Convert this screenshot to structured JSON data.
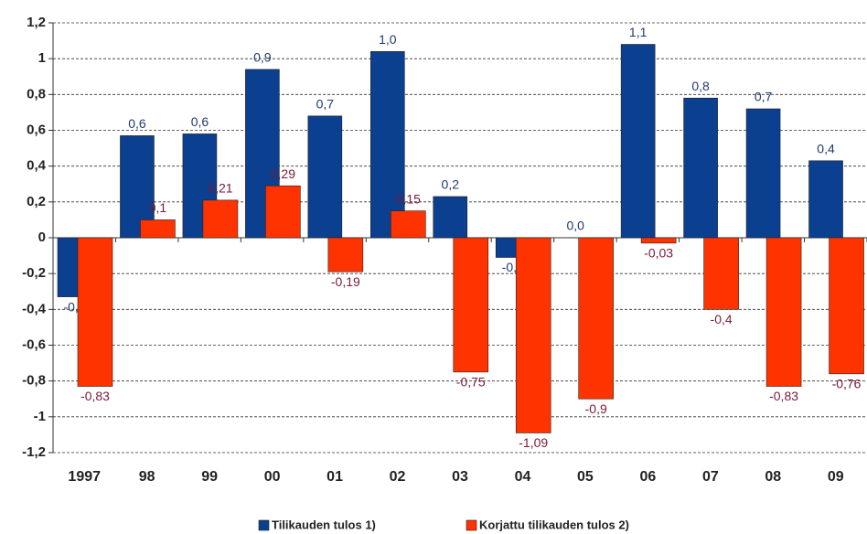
{
  "chart_data": {
    "type": "bar",
    "categories": [
      "1997",
      "98",
      "99",
      "00",
      "01",
      "02",
      "03",
      "04",
      "05",
      "06",
      "07",
      "08",
      "09"
    ],
    "series": [
      {
        "name": "Tilikauden tulos 1)",
        "color": "#0b3f8f",
        "values": [
          -0.33,
          0.57,
          0.58,
          0.94,
          0.68,
          1.04,
          0.23,
          -0.11,
          0.0,
          1.08,
          0.78,
          0.72,
          0.43
        ],
        "value_labels": [
          "-0,3",
          "0,6",
          "0,6",
          "0,9",
          "0,7",
          "1,0",
          "0,2",
          "-0,1",
          "0,0",
          "1,1",
          "0,8",
          "0,7",
          "0,4"
        ]
      },
      {
        "name": "Korjattu tilikauden tulos 2)",
        "color": "#ff3300",
        "values": [
          -0.83,
          0.1,
          0.21,
          0.29,
          -0.19,
          0.15,
          -0.75,
          -1.09,
          -0.9,
          -0.03,
          -0.4,
          -0.83,
          -0.76
        ],
        "value_labels": [
          "-0,83",
          "0,1",
          "0,21",
          "0,29",
          "-0,19",
          "0,15",
          "-0,75",
          "-1,09",
          "-0,9",
          "-0,03",
          "-0,4",
          "-0,83",
          "-0,76"
        ]
      }
    ],
    "ylim": [
      -1.2,
      1.2
    ],
    "yticks": [
      {
        "value": -1.2,
        "label": "-1,2"
      },
      -1,
      {
        "value": -0.8,
        "label": "-0,8"
      },
      {
        "value": -0.6,
        "label": "-0,6"
      },
      {
        "value": -0.4,
        "label": "-0,4"
      },
      {
        "value": -0.2,
        "label": "-0,2"
      },
      0,
      {
        "value": 0.2,
        "label": "0,2"
      },
      {
        "value": 0.4,
        "label": "0,4"
      },
      {
        "value": 0.6,
        "label": "0,6"
      },
      {
        "value": 0.8,
        "label": "0,8"
      },
      1,
      {
        "value": 1.2,
        "label": "1,2"
      }
    ],
    "grid": true
  }
}
